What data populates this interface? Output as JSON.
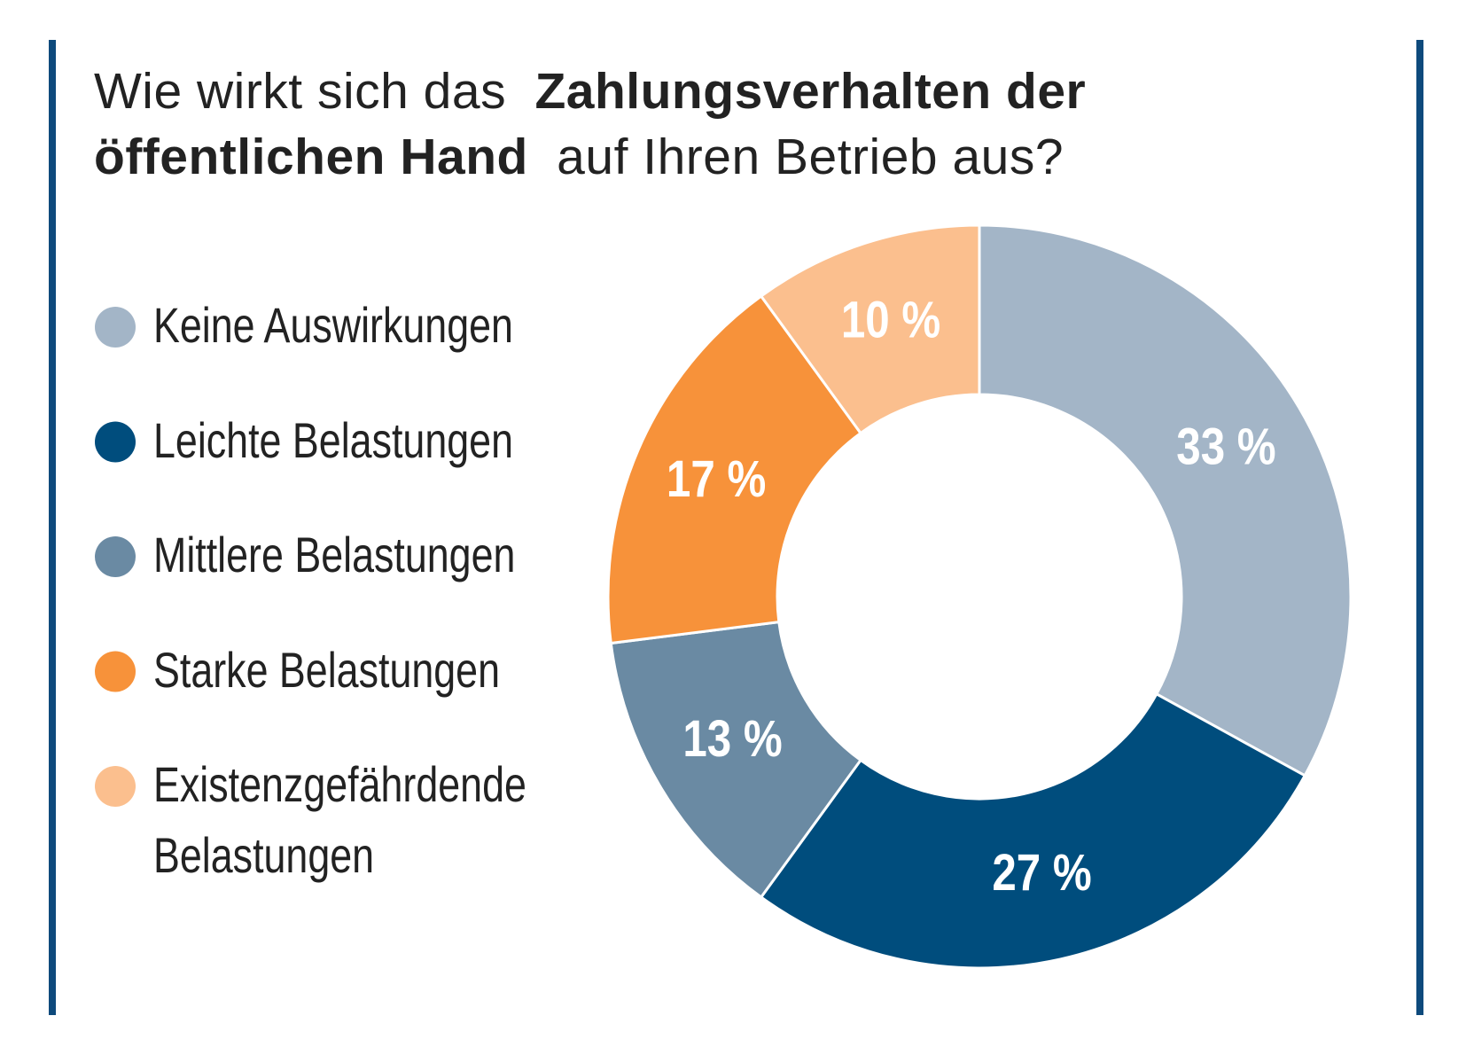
{
  "chart_data": {
    "type": "pie",
    "title": [
      "Wie wirkt sich das",
      "Zahlungsverhalten der",
      "öffentlichen Hand",
      "auf Ihren Betrieb aus?"
    ],
    "title_bold": [
      false,
      true,
      true,
      false
    ],
    "series": [
      {
        "name": "Keine Auswirkungen",
        "color": "#a3b5c7"
      },
      {
        "name": "Leichte Belastungen",
        "color": "#004d7d"
      },
      {
        "name": "Mittlere Belastungen",
        "color": "#6a8aa3"
      },
      {
        "name": "Starke Belastungen",
        "color": "#f7923a"
      },
      {
        "name": "Existenzgefährdende Belastungen",
        "color": "#fbbf8e"
      }
    ],
    "values": [
      33,
      27,
      13,
      17,
      10
    ],
    "value_labels": [
      "33 %",
      "27 %",
      "13 %",
      "17 %",
      "10 %"
    ],
    "legend": "left"
  }
}
